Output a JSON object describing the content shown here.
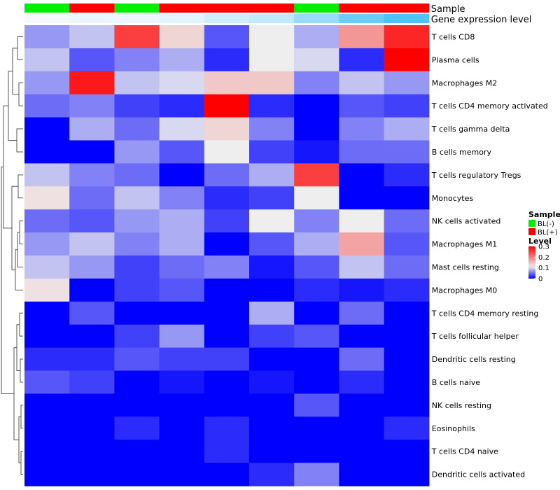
{
  "chart_data": {
    "type": "heatmap",
    "title": "",
    "annotation_labels": [
      "Sample",
      "Gene expression level"
    ],
    "sample_groups": [
      "BL(-)",
      "BL(+)",
      "BL(-)",
      "BL(+)",
      "BL(+)",
      "BL(+)",
      "BL(-)",
      "BL(+)",
      "BL(+)"
    ],
    "gene_expression_levels": [
      0.02,
      0.05,
      0.05,
      0.08,
      0.15,
      0.2,
      0.35,
      0.5,
      0.6
    ],
    "rows": [
      "T cells CD8",
      "Plasma cells",
      "Macrophages M2",
      "T cells CD4 memory activated",
      "T cells gamma delta",
      "B cells memory",
      "T cells regulatory  Tregs",
      "Monocytes",
      "NK cells activated",
      "Macrophages M1",
      "Mast cells resting",
      "Macrophages M0",
      "T cells CD4 memory resting",
      "T cells follicular helper",
      "Dendritic cells resting",
      "B cells naive",
      "NK cells resting",
      "Eosinophils",
      "T cells CD4 naive",
      "Dendritic cells activated"
    ],
    "values": [
      [
        0.07,
        0.09,
        0.25,
        0.13,
        0.04,
        0.11,
        0.08,
        0.18,
        0.27
      ],
      [
        0.09,
        0.04,
        0.06,
        0.08,
        0.02,
        0.11,
        0.1,
        0.02,
        0.3
      ],
      [
        0.07,
        0.28,
        0.09,
        0.1,
        0.14,
        0.14,
        0.06,
        0.09,
        0.07
      ],
      [
        0.05,
        0.06,
        0.03,
        0.02,
        0.3,
        0.02,
        0.0,
        0.04,
        0.03
      ],
      [
        0.0,
        0.08,
        0.05,
        0.1,
        0.13,
        0.06,
        0.0,
        0.06,
        0.08
      ],
      [
        0.0,
        0.0,
        0.07,
        0.04,
        0.11,
        0.03,
        0.01,
        0.05,
        0.05
      ],
      [
        0.09,
        0.06,
        0.05,
        0.0,
        0.05,
        0.08,
        0.25,
        0.0,
        0.02
      ],
      [
        0.12,
        0.05,
        0.09,
        0.06,
        0.02,
        0.03,
        0.11,
        0.0,
        0.0
      ],
      [
        0.05,
        0.04,
        0.07,
        0.08,
        0.03,
        0.11,
        0.06,
        0.11,
        0.05
      ],
      [
        0.07,
        0.09,
        0.06,
        0.08,
        0.0,
        0.04,
        0.08,
        0.17,
        0.04
      ],
      [
        0.09,
        0.07,
        0.03,
        0.05,
        0.06,
        0.01,
        0.04,
        0.09,
        0.05
      ],
      [
        0.12,
        0.0,
        0.03,
        0.04,
        0.0,
        0.0,
        0.02,
        0.01,
        0.02
      ],
      [
        0.0,
        0.04,
        0.0,
        0.0,
        0.0,
        0.08,
        0.0,
        0.05,
        0.0
      ],
      [
        0.0,
        0.0,
        0.03,
        0.07,
        0.0,
        0.03,
        0.04,
        0.0,
        0.0
      ],
      [
        0.02,
        0.02,
        0.04,
        0.03,
        0.03,
        0.0,
        0.0,
        0.05,
        0.0
      ],
      [
        0.04,
        0.03,
        0.0,
        0.01,
        0.0,
        0.01,
        0.0,
        0.02,
        0.0
      ],
      [
        0.0,
        0.0,
        0.0,
        0.0,
        0.0,
        0.0,
        0.04,
        0.0,
        0.0
      ],
      [
        0.0,
        0.0,
        0.02,
        0.0,
        0.02,
        0.0,
        0.0,
        0.0,
        0.02
      ],
      [
        0.0,
        0.0,
        0.0,
        0.0,
        0.02,
        0.0,
        0.0,
        0.0,
        0.0
      ],
      [
        0.0,
        0.0,
        0.0,
        0.0,
        0.0,
        0.02,
        0.06,
        0.0,
        0.0
      ]
    ],
    "color_scale": {
      "min": 0,
      "mid": 0.11,
      "max": 0.3,
      "low_color": "#0000ff",
      "mid_color": "#eeeeee",
      "high_color": "#ff0000"
    },
    "legend": {
      "sample": {
        "title": "Sample",
        "entries": [
          {
            "label": "BL(-)",
            "color": "#00ee00"
          },
          {
            "label": "BL(+)",
            "color": "#ff0000"
          }
        ]
      },
      "level": {
        "title": "Level",
        "ticks": [
          0.3,
          0.2,
          0.1,
          0
        ],
        "tick_labels": [
          "0.3",
          "0.2",
          "0.1",
          "0"
        ]
      }
    },
    "expression_colors": {
      "low": "#f5f9fd",
      "high": "#4fc3f7"
    },
    "dendrogram": "hierarchical clustering of rows"
  }
}
